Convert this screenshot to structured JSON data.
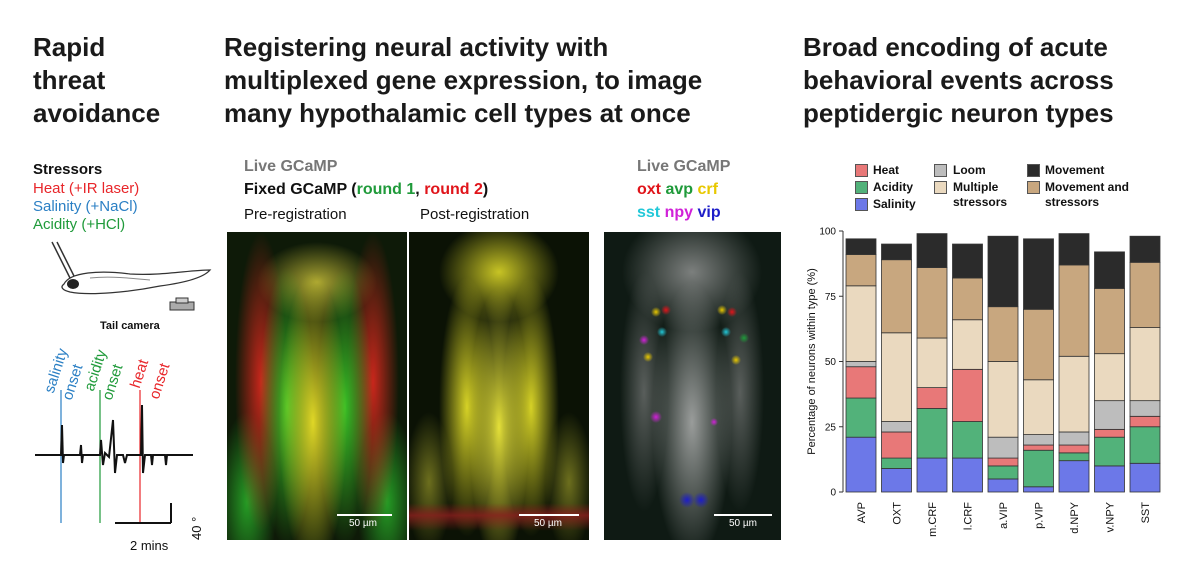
{
  "panel1": {
    "title_lines": [
      "Rapid",
      "threat",
      "avoidance"
    ],
    "stressors_header": "Stressors",
    "stressors": [
      {
        "text": "Heat (+IR laser)",
        "color": "#e8262a"
      },
      {
        "text": "Salinity (+NaCl)",
        "color": "#2a7fc4"
      },
      {
        "text": "Acidity (+HCl)",
        "color": "#1f9a3a"
      }
    ],
    "camera_label": "Tail camera",
    "trace_labels": [
      {
        "text": "salinity",
        "color": "#2a7fc4"
      },
      {
        "text": "onset",
        "color": "#2a7fc4"
      },
      {
        "text": "acidity",
        "color": "#1f9a3a"
      },
      {
        "text": "onset",
        "color": "#1f9a3a"
      },
      {
        "text": "heat",
        "color": "#e8262a"
      },
      {
        "text": "onset",
        "color": "#e8262a"
      }
    ],
    "time_scale": "2 mins",
    "angle_scale": "40 °"
  },
  "panel2": {
    "title_lines": [
      "Registering neural activity with",
      "multiplexed gene expression, to image",
      "many hypothalamic cell types at once"
    ],
    "live_label": "Live GCaMP",
    "fixed_prefix": "Fixed GCaMP (",
    "round1": "round 1",
    "comma": ", ",
    "round2": "round 2",
    "fixed_suffix": ")",
    "pre_label": "Pre-registration",
    "post_label": "Post-registration",
    "scale1": "50 µm",
    "scale2": "50 µm",
    "colors": {
      "green": "#1f9a3a",
      "red": "#e0141a",
      "gray": "#777777"
    }
  },
  "panel3": {
    "live_label": "Live GCaMP",
    "genes_row1": [
      {
        "text": "oxt",
        "color": "#e0141a"
      },
      {
        "text": "avp",
        "color": "#1f9a3a"
      },
      {
        "text": "crf",
        "color": "#e8c800"
      }
    ],
    "genes_row2": [
      {
        "text": "sst",
        "color": "#22c8d8"
      },
      {
        "text": "npy",
        "color": "#d020d8"
      },
      {
        "text": "vip",
        "color": "#1d1dc8"
      }
    ],
    "scale": "50 µm"
  },
  "panel4": {
    "title_lines": [
      "Broad encoding of acute",
      "behavioral events across",
      "peptidergic neuron types"
    ],
    "legend": [
      {
        "label": "Heat",
        "color": "#e87878"
      },
      {
        "label": "Acidity",
        "color": "#52b27a"
      },
      {
        "label": "Salinity",
        "color": "#6c78e8"
      },
      {
        "label": "Loom",
        "color": "#bdbdbd"
      },
      {
        "label": "Multiple stressors",
        "color": "#ead9bf"
      },
      {
        "label": "Movement",
        "color": "#2b2b2b"
      },
      {
        "label": "Movement and stressors",
        "color": "#c8a77f"
      }
    ]
  },
  "chart_data": {
    "type": "bar",
    "stacked": true,
    "ylabel": "Percentage of neurons within type (%)",
    "ylim": [
      0,
      100
    ],
    "yticks": [
      0,
      25,
      50,
      75,
      100
    ],
    "categories": [
      "AVP",
      "OXT",
      "m.CRF",
      "l.CRF",
      "a.VIP",
      "p.VIP",
      "d.NPY",
      "v.NPY",
      "SST"
    ],
    "series": [
      {
        "name": "Salinity",
        "color": "#6c78e8",
        "values": [
          21,
          9,
          13,
          13,
          5,
          2,
          12,
          10,
          11
        ]
      },
      {
        "name": "Acidity",
        "color": "#52b27a",
        "values": [
          15,
          4,
          19,
          14,
          5,
          14,
          3,
          11,
          14
        ]
      },
      {
        "name": "Heat",
        "color": "#e87878",
        "values": [
          12,
          10,
          8,
          20,
          3,
          2,
          3,
          3,
          4
        ]
      },
      {
        "name": "Loom",
        "color": "#bdbdbd",
        "values": [
          2,
          4,
          0,
          0,
          8,
          4,
          5,
          11,
          6
        ]
      },
      {
        "name": "Multiple stressors",
        "color": "#ead9bf",
        "values": [
          29,
          34,
          19,
          19,
          29,
          21,
          29,
          18,
          28
        ]
      },
      {
        "name": "Movement and stressors",
        "color": "#c8a77f",
        "values": [
          12,
          28,
          27,
          16,
          21,
          27,
          35,
          25,
          25
        ]
      },
      {
        "name": "Movement",
        "color": "#2b2b2b",
        "values": [
          6,
          6,
          13,
          13,
          27,
          27,
          12,
          14,
          10
        ]
      }
    ]
  }
}
